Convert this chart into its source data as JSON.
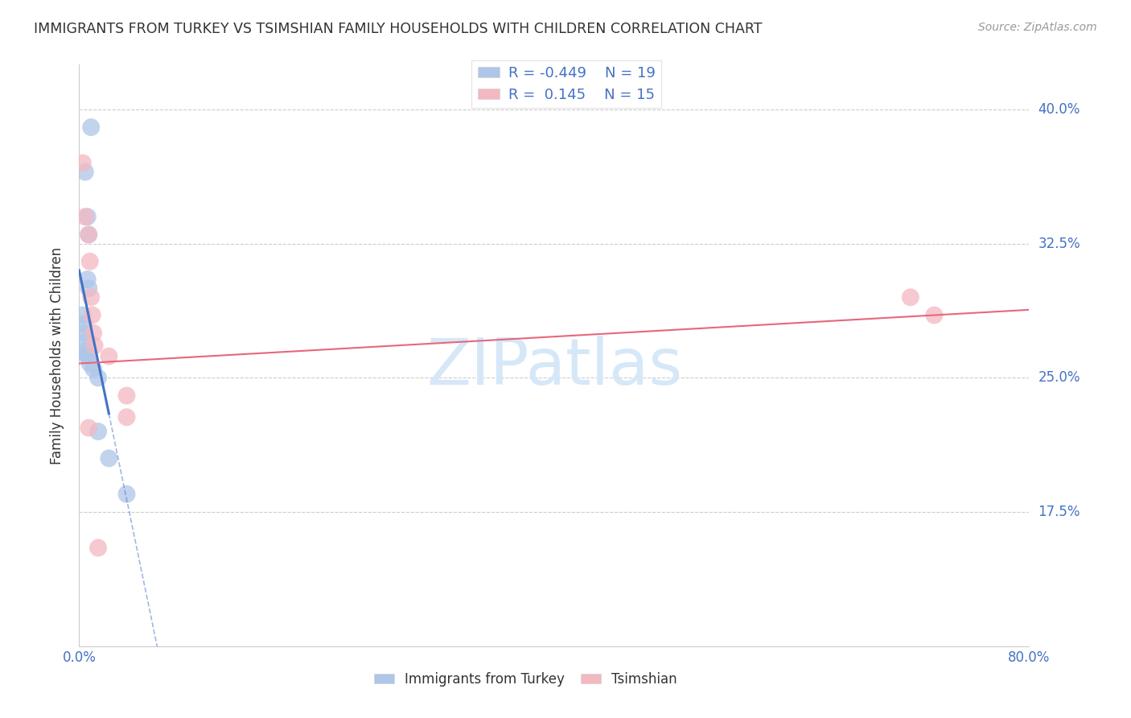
{
  "title": "IMMIGRANTS FROM TURKEY VS TSIMSHIAN FAMILY HOUSEHOLDS WITH CHILDREN CORRELATION CHART",
  "source": "Source: ZipAtlas.com",
  "ylabel": "Family Households with Children",
  "xlabel": "",
  "watermark": "ZIPatlas",
  "xmin": 0.0,
  "xmax": 0.8,
  "ymin": 0.1,
  "ymax": 0.425,
  "yticks": [
    0.175,
    0.25,
    0.325,
    0.4
  ],
  "ytick_labels": [
    "17.5%",
    "25.0%",
    "32.5%",
    "40.0%"
  ],
  "xticks": [
    0.0,
    0.1,
    0.2,
    0.3,
    0.4,
    0.5,
    0.6,
    0.7,
    0.8
  ],
  "xtick_labels": [
    "0.0%",
    "",
    "",
    "",
    "",
    "",
    "",
    "",
    "80.0%"
  ],
  "blue_scatter_x": [
    0.01,
    0.005,
    0.007,
    0.008,
    0.007,
    0.008,
    0.003,
    0.004,
    0.004,
    0.005,
    0.005,
    0.006,
    0.007,
    0.009,
    0.012,
    0.016,
    0.016,
    0.025,
    0.04
  ],
  "blue_scatter_y": [
    0.39,
    0.365,
    0.34,
    0.33,
    0.305,
    0.3,
    0.285,
    0.28,
    0.275,
    0.27,
    0.265,
    0.263,
    0.262,
    0.258,
    0.255,
    0.25,
    0.22,
    0.205,
    0.185
  ],
  "pink_scatter_x": [
    0.003,
    0.005,
    0.008,
    0.009,
    0.01,
    0.011,
    0.012,
    0.013,
    0.025,
    0.04,
    0.04,
    0.7,
    0.72,
    0.008,
    0.016
  ],
  "pink_scatter_y": [
    0.37,
    0.34,
    0.33,
    0.315,
    0.295,
    0.285,
    0.275,
    0.268,
    0.262,
    0.24,
    0.228,
    0.295,
    0.285,
    0.222,
    0.155
  ],
  "blue_line_x0": 0.0,
  "blue_line_y0": 0.31,
  "blue_line_x1": 0.025,
  "blue_line_y1": 0.23,
  "blue_line_solid_end": 0.025,
  "blue_line_dash_end": 0.28,
  "pink_line_x0": 0.0,
  "pink_line_y0": 0.258,
  "pink_line_x1": 0.8,
  "pink_line_y1": 0.288,
  "blue_line_color": "#4472c4",
  "pink_line_color": "#e8667a",
  "blue_scatter_color": "#aec6e8",
  "pink_scatter_color": "#f4b8c1",
  "grid_color": "#cccccc",
  "axis_color": "#cccccc",
  "title_color": "#333333",
  "source_color": "#999999",
  "watermark_color": "#d6e8f8",
  "right_label_color": "#4472c4",
  "tick_label_color": "#4472c4"
}
